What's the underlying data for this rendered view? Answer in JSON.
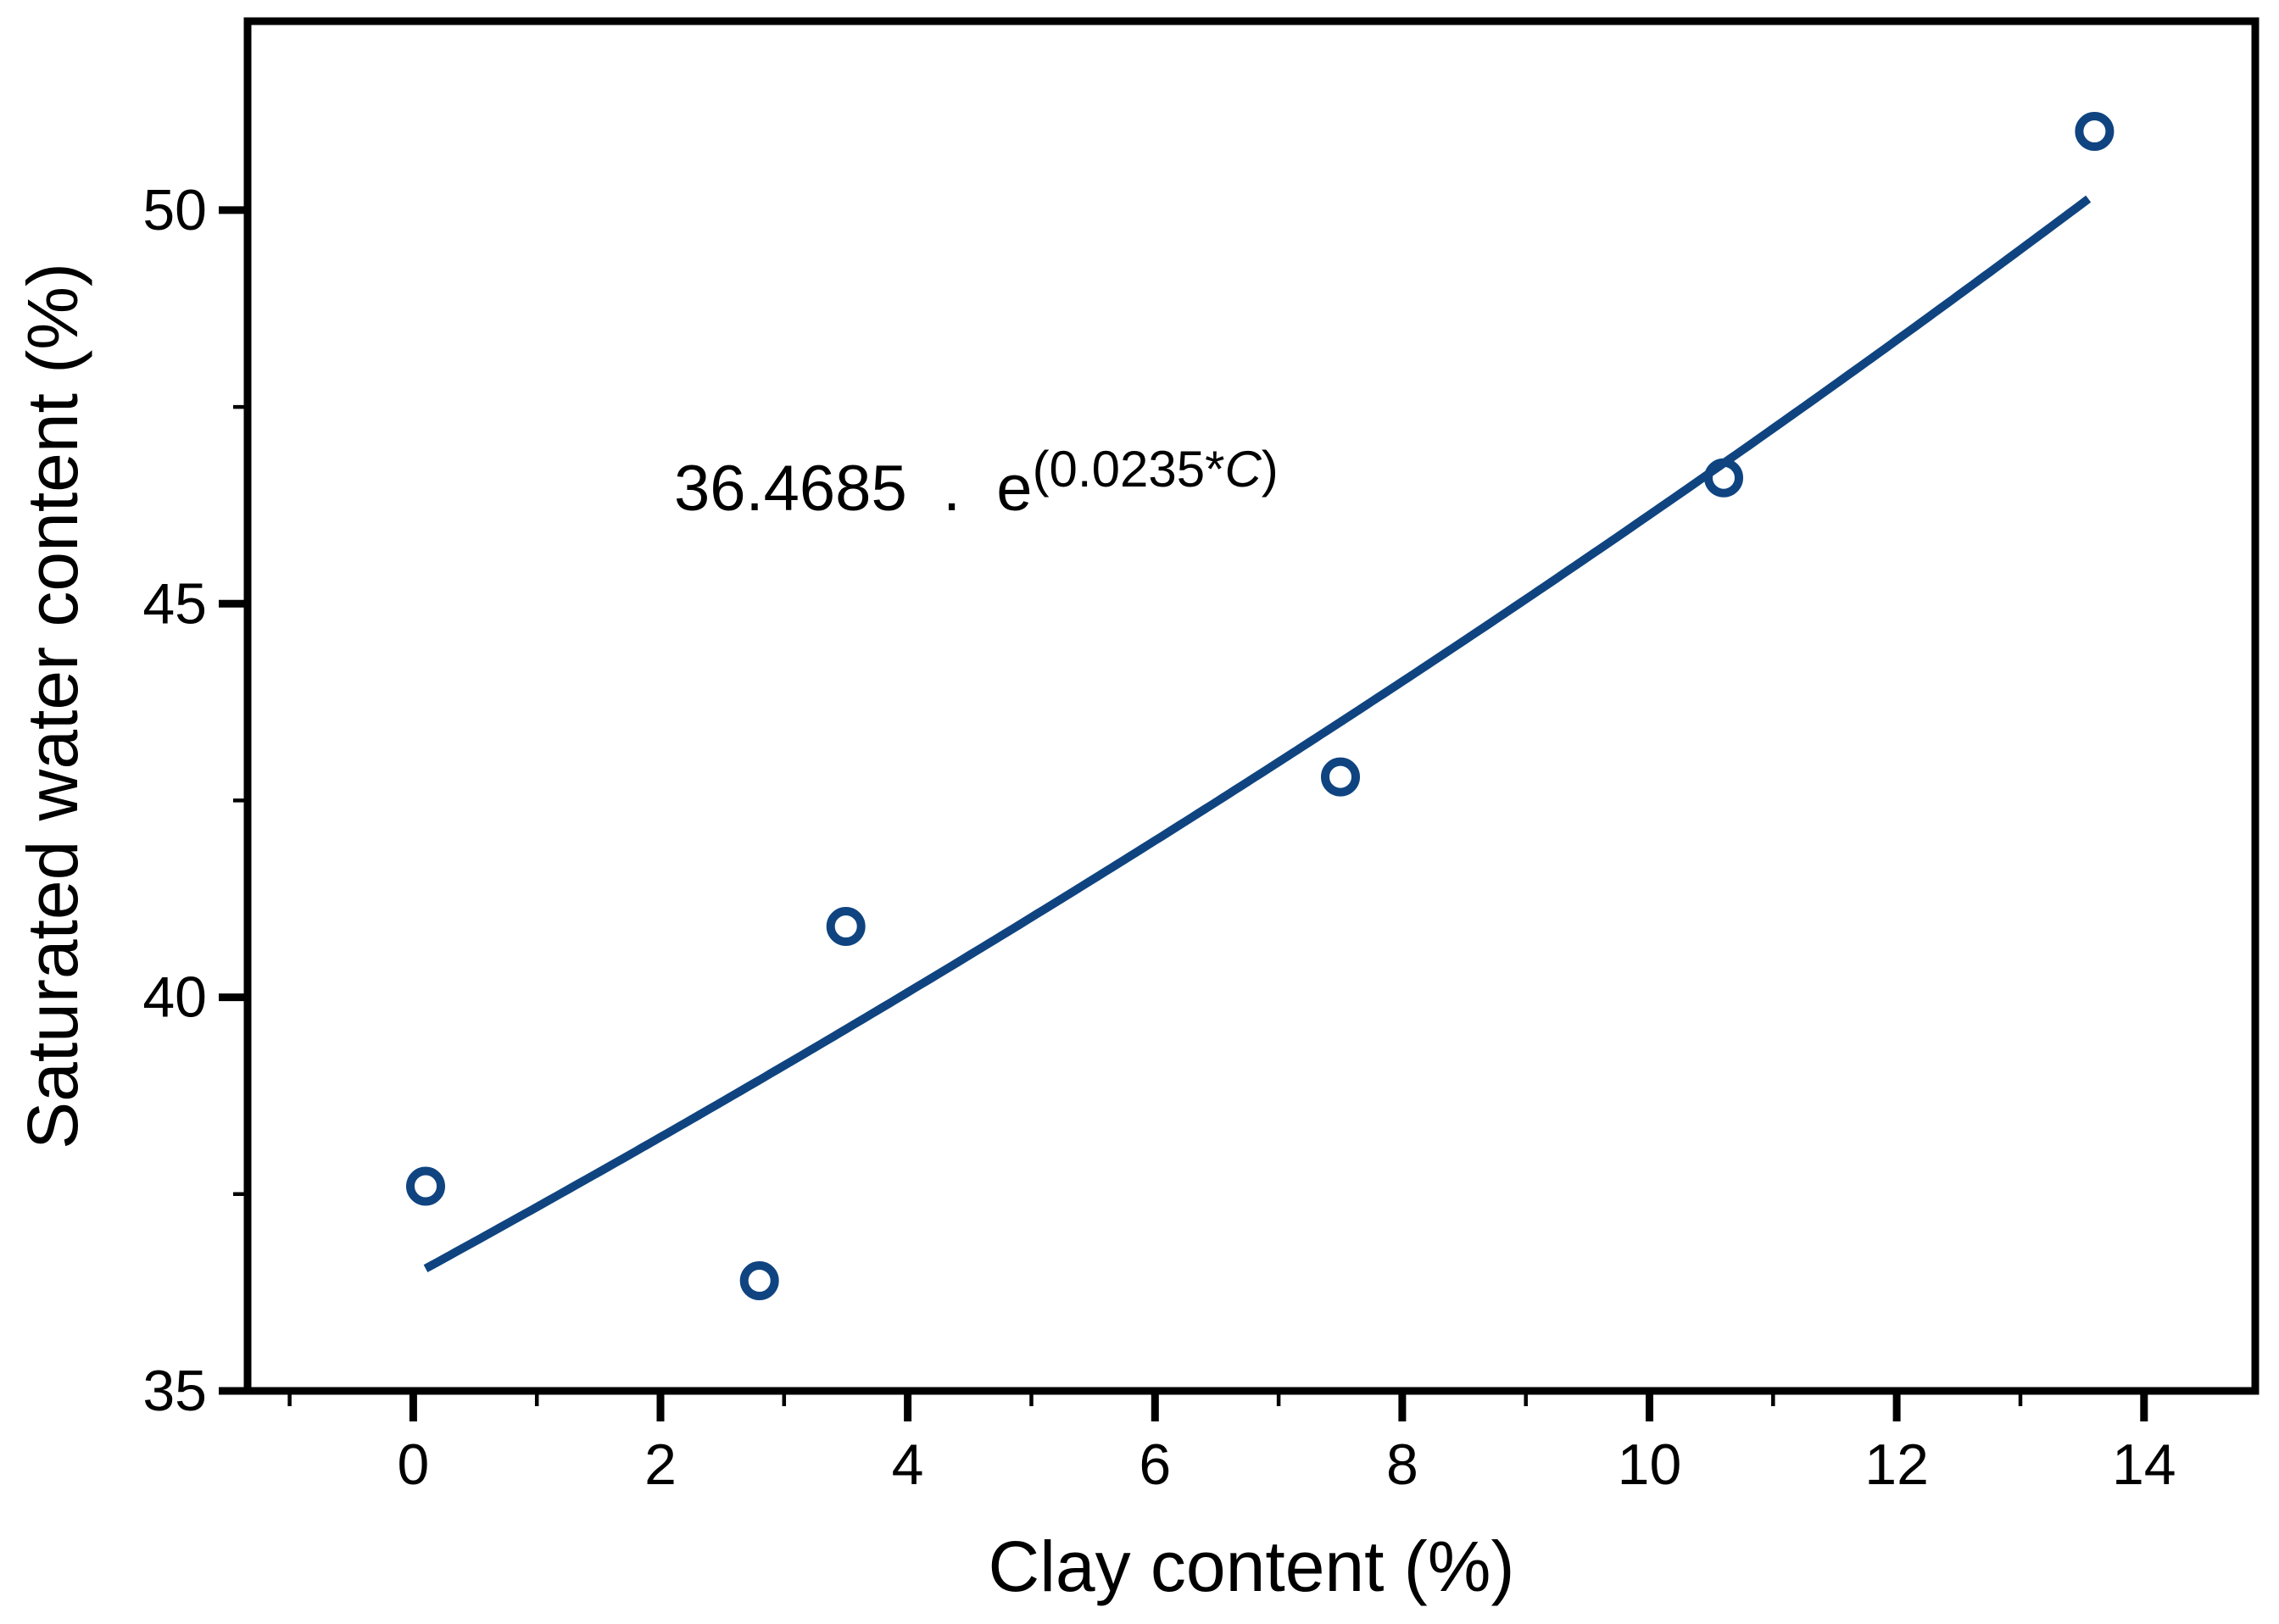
{
  "chart_data": {
    "type": "scatter",
    "title": "",
    "xlabel": "Clay content (%)",
    "ylabel": "Saturated water content (%)",
    "xlim": [
      -1.34,
      14.9
    ],
    "ylim": [
      35,
      52.4
    ],
    "grid": false,
    "legend": null,
    "x_major_ticks": [
      0,
      2,
      4,
      6,
      8,
      10,
      12,
      14
    ],
    "x_minor_ticks": [
      -1,
      1,
      3,
      5,
      7,
      9,
      11,
      13
    ],
    "y_major_ticks": [
      35,
      40,
      45,
      50
    ],
    "y_minor_ticks": [
      37.5,
      42.5,
      47.5
    ],
    "series": [
      {
        "name": "observed-points",
        "type": "scatter",
        "marker": "open-circle",
        "color": "#0f4480",
        "points": [
          [
            0.1,
            37.6
          ],
          [
            2.8,
            36.4
          ],
          [
            3.5,
            40.9
          ],
          [
            7.5,
            42.8
          ],
          [
            10.6,
            46.6
          ],
          [
            13.6,
            51.0
          ]
        ]
      },
      {
        "name": "exponential-fit",
        "type": "curve",
        "color": "#0f4480",
        "equation": "y = 36.4685 * e^(0.0235*C)",
        "a": 36.4685,
        "b": 0.0235,
        "x_start": 0.1,
        "x_end": 13.55
      }
    ],
    "annotation": {
      "base": "36.4685  .  e",
      "sup_pre": "(0.0235*",
      "sup_italic": "C",
      "sup_post": ")",
      "anchor_data_coords": [
        2.11,
        46.4
      ]
    },
    "colors": {
      "axis": "#000000",
      "data": "#0f4480",
      "background": "#ffffff"
    }
  }
}
